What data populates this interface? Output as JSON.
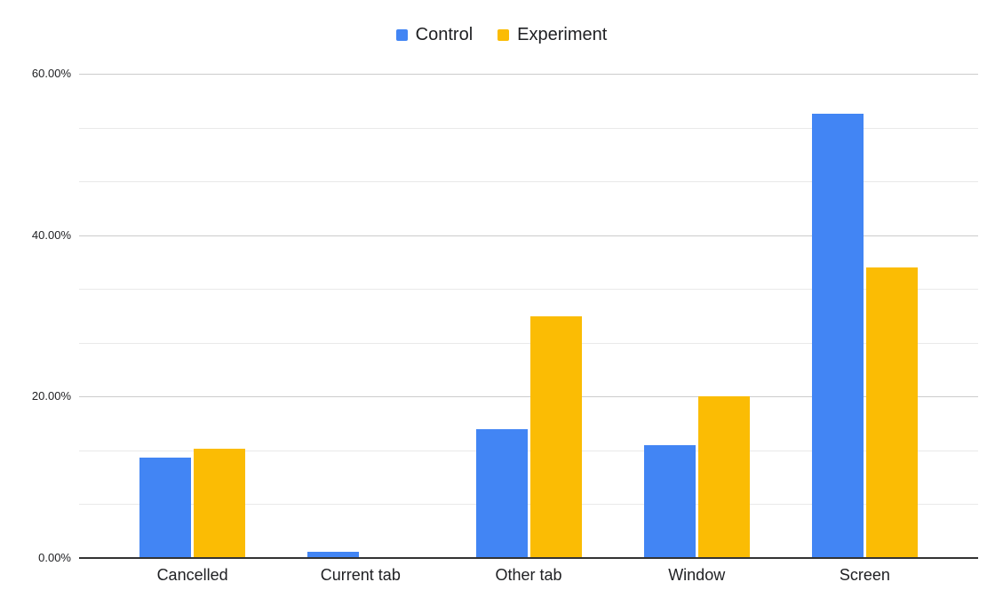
{
  "chart_data": {
    "type": "bar",
    "categories": [
      "Cancelled",
      "Current tab",
      "Other tab",
      "Window",
      "Screen"
    ],
    "series": [
      {
        "name": "Control",
        "color": "#4285F4",
        "values": [
          12.4,
          0.8,
          16.0,
          14.0,
          55.0
        ]
      },
      {
        "name": "Experiment",
        "color": "#FBBC04",
        "values": [
          13.5,
          0.0,
          30.0,
          20.0,
          36.0
        ]
      }
    ],
    "title": "",
    "xlabel": "",
    "ylabel": "",
    "ylim": [
      0,
      60
    ],
    "y_tick_labels": [
      "0.00%",
      "20.00%",
      "40.00%",
      "60.00%"
    ],
    "y_major_step": 20,
    "y_minor_divisions_per_major": 3,
    "grid": true,
    "legend_position": "top"
  },
  "colors": {
    "background": "#ffffff",
    "axis_line": "#333333",
    "major_gridline": "#cccccc",
    "minor_gridline": "#e9e9e9",
    "text": "#202124"
  }
}
